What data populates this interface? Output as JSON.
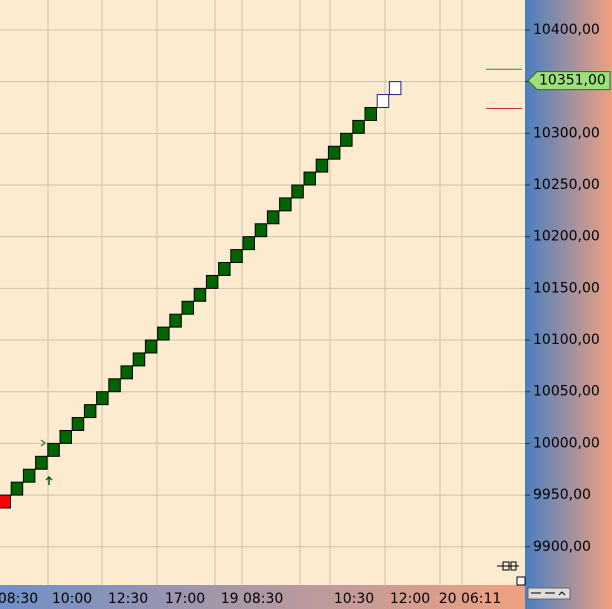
{
  "chart_data": {
    "type": "renko",
    "ylim": [
      9863,
      10429
    ],
    "yticks": [
      {
        "value": 10400,
        "label": "10400,00"
      },
      {
        "value": 10350,
        "label": "10350,00"
      },
      {
        "value": 10300,
        "label": "10300,00"
      },
      {
        "value": 10250,
        "label": "10250,00"
      },
      {
        "value": 10200,
        "label": "10200,00"
      },
      {
        "value": 10150,
        "label": "10150,00"
      },
      {
        "value": 10100,
        "label": "10100,00"
      },
      {
        "value": 10050,
        "label": "10050,00"
      },
      {
        "value": 10000,
        "label": "10000,00"
      },
      {
        "value": 9950,
        "label": "9950,00"
      },
      {
        "value": 9900,
        "label": "9900,00"
      }
    ],
    "x_labels": [
      "08:30",
      "10:00",
      "12:30",
      "17:00",
      "19 08:30",
      "10:30",
      "12:00",
      "20 06:11"
    ],
    "grid": true,
    "price": {
      "value": 10351,
      "label": "10351,00",
      "color": "#9be07a"
    },
    "price_lines": [
      {
        "value": 10362,
        "color": "#2e8b2e"
      },
      {
        "value": 10324,
        "color": "#c83232"
      }
    ],
    "bricks": [
      {
        "open": 9950,
        "close": 9937.5,
        "fill": "#ff0000"
      },
      {
        "open": 9950,
        "close": 9962.5,
        "fill": "#006400"
      },
      {
        "open": 9962.5,
        "close": 9975,
        "fill": "#006400"
      },
      {
        "open": 9975,
        "close": 9987.5,
        "fill": "#006400"
      },
      {
        "open": 9987.5,
        "close": 10000,
        "fill": "#006400"
      },
      {
        "open": 10000,
        "close": 10012.5,
        "fill": "#006400"
      },
      {
        "open": 10012.5,
        "close": 10025,
        "fill": "#006400"
      },
      {
        "open": 10025,
        "close": 10037.5,
        "fill": "#006400"
      },
      {
        "open": 10037.5,
        "close": 10050,
        "fill": "#006400"
      },
      {
        "open": 10050,
        "close": 10062.5,
        "fill": "#006400"
      },
      {
        "open": 10062.5,
        "close": 10075,
        "fill": "#006400"
      },
      {
        "open": 10075,
        "close": 10087.5,
        "fill": "#006400"
      },
      {
        "open": 10087.5,
        "close": 10100,
        "fill": "#006400"
      },
      {
        "open": 10100,
        "close": 10112.5,
        "fill": "#006400"
      },
      {
        "open": 10112.5,
        "close": 10125,
        "fill": "#006400"
      },
      {
        "open": 10125,
        "close": 10137.5,
        "fill": "#006400"
      },
      {
        "open": 10137.5,
        "close": 10150,
        "fill": "#006400"
      },
      {
        "open": 10150,
        "close": 10162.5,
        "fill": "#006400"
      },
      {
        "open": 10162.5,
        "close": 10175,
        "fill": "#006400"
      },
      {
        "open": 10175,
        "close": 10187.5,
        "fill": "#006400"
      },
      {
        "open": 10187.5,
        "close": 10200,
        "fill": "#006400"
      },
      {
        "open": 10200,
        "close": 10212.5,
        "fill": "#006400"
      },
      {
        "open": 10212.5,
        "close": 10225,
        "fill": "#006400"
      },
      {
        "open": 10225,
        "close": 10237.5,
        "fill": "#006400"
      },
      {
        "open": 10237.5,
        "close": 10250,
        "fill": "#006400"
      },
      {
        "open": 10250,
        "close": 10262.5,
        "fill": "#006400"
      },
      {
        "open": 10262.5,
        "close": 10275,
        "fill": "#006400"
      },
      {
        "open": 10275,
        "close": 10287.5,
        "fill": "#006400"
      },
      {
        "open": 10287.5,
        "close": 10300,
        "fill": "#006400"
      },
      {
        "open": 10300,
        "close": 10312.5,
        "fill": "#006400"
      },
      {
        "open": 10312.5,
        "close": 10325,
        "fill": "#006400"
      },
      {
        "open": 10325,
        "close": 10337.5,
        "fill": "#ffffff"
      },
      {
        "open": 10337.5,
        "close": 10350,
        "fill": "#ffffff"
      }
    ]
  }
}
